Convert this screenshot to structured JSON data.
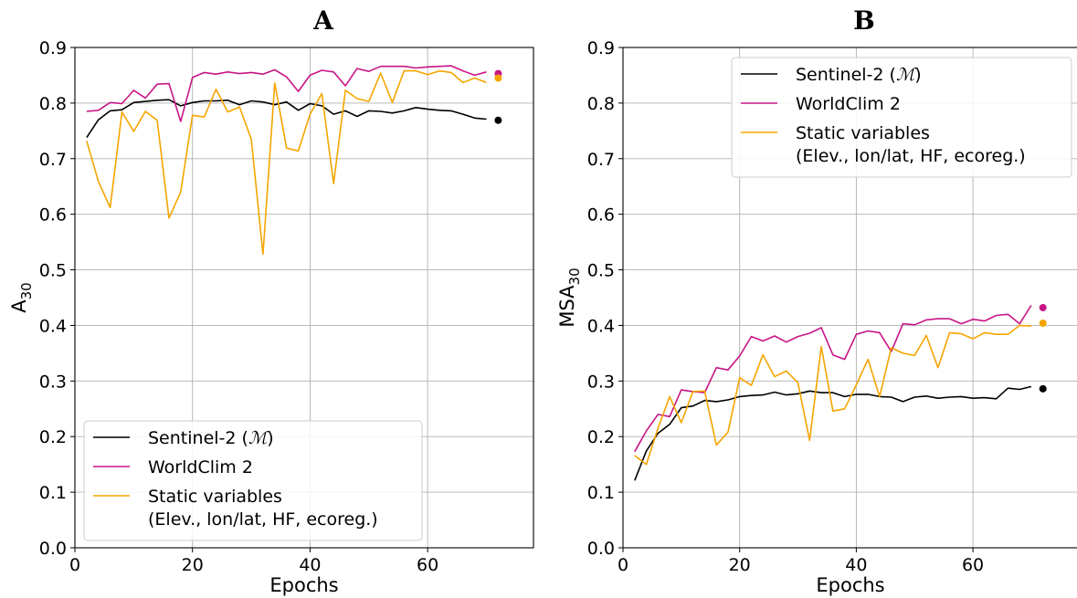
{
  "chart_data": [
    {
      "type": "line",
      "panel": "A",
      "xlabel": "Epochs",
      "ylabel_main": "A",
      "ylabel_sub": "30",
      "xlim": [
        0,
        78
      ],
      "ylim": [
        0.0,
        0.9
      ],
      "xticks": [
        "0",
        "20",
        "40",
        "60"
      ],
      "xtick_values": [
        0,
        20,
        40,
        60
      ],
      "yticks": [
        "0.0",
        "0.1",
        "0.2",
        "0.3",
        "0.4",
        "0.5",
        "0.6",
        "0.7",
        "0.8",
        "0.9"
      ],
      "ytick_values": [
        0.0,
        0.1,
        0.2,
        0.3,
        0.4,
        0.5,
        0.6,
        0.7,
        0.8,
        0.9
      ],
      "grid": true,
      "legend_position": "lower-left",
      "x": [
        2,
        4,
        6,
        8,
        10,
        12,
        14,
        16,
        18,
        20,
        22,
        24,
        26,
        28,
        30,
        32,
        34,
        36,
        38,
        40,
        42,
        44,
        46,
        48,
        50,
        52,
        54,
        56,
        58,
        60,
        62,
        64,
        66,
        68,
        70
      ],
      "series": [
        {
          "name": "Sentinel-2 (",
          "name_math": "ℳ",
          "name_end": ")",
          "color": "#000000",
          "values": [
            0.738,
            0.77,
            0.786,
            0.788,
            0.801,
            0.803,
            0.805,
            0.806,
            0.795,
            0.801,
            0.804,
            0.804,
            0.805,
            0.797,
            0.804,
            0.802,
            0.797,
            0.802,
            0.787,
            0.799,
            0.795,
            0.78,
            0.786,
            0.776,
            0.786,
            0.785,
            0.782,
            0.786,
            0.792,
            0.789,
            0.787,
            0.786,
            0.78,
            0.773,
            0.771
          ],
          "final_point": 0.769
        },
        {
          "name": "WorldClim 2",
          "color": "#c71585",
          "values": [
            0.785,
            0.787,
            0.801,
            0.799,
            0.823,
            0.809,
            0.834,
            0.835,
            0.767,
            0.846,
            0.855,
            0.852,
            0.856,
            0.853,
            0.855,
            0.852,
            0.86,
            0.847,
            0.821,
            0.85,
            0.859,
            0.856,
            0.831,
            0.862,
            0.857,
            0.866,
            0.866,
            0.866,
            0.863,
            0.865,
            0.866,
            0.867,
            0.858,
            0.85,
            0.856
          ],
          "final_point": 0.853
        },
        {
          "name": "Static variables",
          "name_line2": "(Elev., lon/lat, HF, ecoreg.)",
          "color": "#f5a500",
          "values": [
            0.732,
            0.659,
            0.612,
            0.784,
            0.749,
            0.785,
            0.769,
            0.593,
            0.64,
            0.778,
            0.775,
            0.825,
            0.784,
            0.793,
            0.735,
            0.528,
            0.836,
            0.719,
            0.714,
            0.78,
            0.817,
            0.655,
            0.823,
            0.808,
            0.803,
            0.854,
            0.801,
            0.858,
            0.858,
            0.851,
            0.858,
            0.855,
            0.837,
            0.845,
            0.837
          ],
          "final_point": 0.845
        }
      ]
    },
    {
      "type": "line",
      "panel": "B",
      "xlabel": "Epochs",
      "ylabel_main": "MSA",
      "ylabel_sub": "30",
      "xlim": [
        0,
        78
      ],
      "ylim": [
        0.0,
        0.9
      ],
      "xticks": [
        "0",
        "20",
        "40",
        "60"
      ],
      "xtick_values": [
        0,
        20,
        40,
        60
      ],
      "yticks": [
        "0.0",
        "0.1",
        "0.2",
        "0.3",
        "0.4",
        "0.5",
        "0.6",
        "0.7",
        "0.8",
        "0.9"
      ],
      "ytick_values": [
        0.0,
        0.1,
        0.2,
        0.3,
        0.4,
        0.5,
        0.6,
        0.7,
        0.8,
        0.9
      ],
      "grid": true,
      "legend_position": "upper-right",
      "x": [
        2,
        4,
        6,
        8,
        10,
        12,
        14,
        16,
        18,
        20,
        22,
        24,
        26,
        28,
        30,
        32,
        34,
        36,
        38,
        40,
        42,
        44,
        46,
        48,
        50,
        52,
        54,
        56,
        58,
        60,
        62,
        64,
        66,
        68,
        70
      ],
      "series": [
        {
          "name": "Sentinel-2 (",
          "name_math": "ℳ",
          "name_end": ")",
          "color": "#000000",
          "values": [
            0.121,
            0.174,
            0.206,
            0.222,
            0.252,
            0.255,
            0.265,
            0.263,
            0.266,
            0.272,
            0.274,
            0.275,
            0.28,
            0.275,
            0.277,
            0.282,
            0.279,
            0.279,
            0.272,
            0.276,
            0.276,
            0.272,
            0.271,
            0.263,
            0.271,
            0.273,
            0.269,
            0.271,
            0.272,
            0.269,
            0.27,
            0.268,
            0.287,
            0.285,
            0.29
          ],
          "final_point": 0.286
        },
        {
          "name": "WorldClim 2",
          "color": "#c71585",
          "values": [
            0.173,
            0.21,
            0.24,
            0.236,
            0.284,
            0.281,
            0.279,
            0.324,
            0.32,
            0.345,
            0.38,
            0.372,
            0.381,
            0.37,
            0.38,
            0.386,
            0.396,
            0.347,
            0.339,
            0.384,
            0.39,
            0.387,
            0.353,
            0.403,
            0.401,
            0.41,
            0.412,
            0.412,
            0.403,
            0.411,
            0.408,
            0.418,
            0.42,
            0.403,
            0.436
          ],
          "final_point": 0.432
        },
        {
          "name": "Static variables",
          "name_line2": "(Elev., lon/lat, HF, ecoreg.)",
          "color": "#f5a500",
          "values": [
            0.166,
            0.15,
            0.215,
            0.272,
            0.225,
            0.281,
            0.282,
            0.185,
            0.208,
            0.306,
            0.292,
            0.347,
            0.308,
            0.318,
            0.297,
            0.193,
            0.362,
            0.246,
            0.25,
            0.293,
            0.339,
            0.272,
            0.36,
            0.35,
            0.346,
            0.382,
            0.324,
            0.387,
            0.385,
            0.376,
            0.387,
            0.384,
            0.384,
            0.4,
            0.399
          ],
          "final_point": 0.404
        }
      ]
    }
  ],
  "final_point_x": 72
}
